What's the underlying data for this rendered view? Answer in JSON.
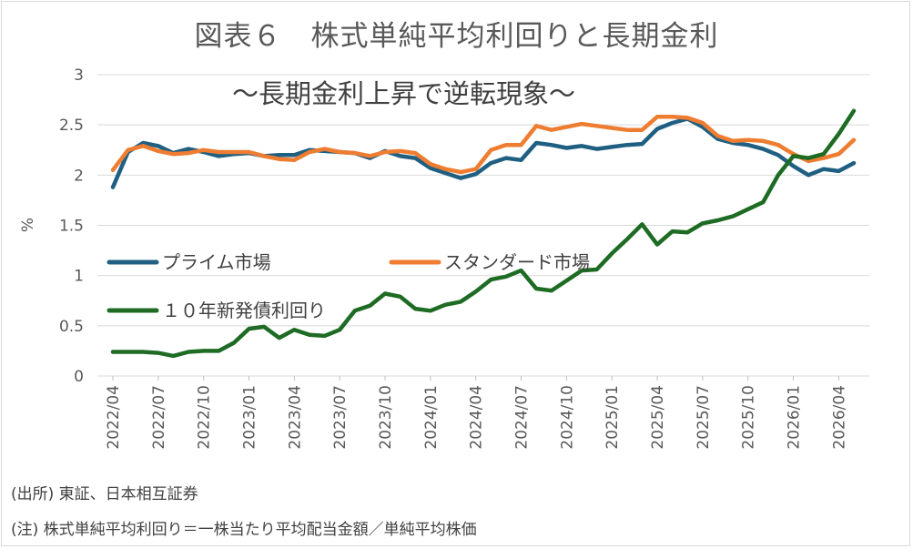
{
  "header": {
    "title": "図表６　株式単純平均利回りと長期金利",
    "subtitle": "～長期金利上昇で逆転現象～"
  },
  "notes": {
    "source": "(出所) 東証、日本相互証券",
    "footnote": "(注) 株式単純平均利回り＝一株当たり平均配当金額／単純平均株価"
  },
  "chart_data": {
    "type": "line",
    "title": "図表６　株式単純平均利回りと長期金利",
    "subtitle": "～長期金利上昇で逆転現象～",
    "ylabel": "%",
    "ylim": [
      0,
      3
    ],
    "yticks": [
      "0",
      "0.5",
      "1",
      "1.5",
      "2",
      "2.5",
      "3"
    ],
    "grid": true,
    "x_tick_labels": [
      "2022/04",
      "2022/07",
      "2022/10",
      "2023/01",
      "2023/04",
      "2023/07",
      "2023/10",
      "2024/01",
      "2024/04",
      "2024/07",
      "2024/10",
      "2025/01",
      "2025/04",
      "2025/07",
      "2025/10",
      "2026/01",
      "2026/04"
    ],
    "x": [
      "2022/04",
      "2022/05",
      "2022/06",
      "2022/07",
      "2022/08",
      "2022/09",
      "2022/10",
      "2022/11",
      "2022/12",
      "2023/01",
      "2023/02",
      "2023/03",
      "2023/04",
      "2023/05",
      "2023/06",
      "2023/07",
      "2023/08",
      "2023/09",
      "2023/10",
      "2023/11",
      "2023/12",
      "2024/01",
      "2024/02",
      "2024/03",
      "2024/04",
      "2024/05",
      "2024/06",
      "2024/07",
      "2024/08",
      "2024/09",
      "2024/10",
      "2024/11",
      "2024/12",
      "2025/01",
      "2025/02",
      "2025/03",
      "2025/04",
      "2025/05",
      "2025/06",
      "2025/07",
      "2025/08",
      "2025/09",
      "2025/10",
      "2025/11",
      "2025/12",
      "2026/01",
      "2026/02",
      "2026/03",
      "2026/04",
      "2026/05"
    ],
    "series": [
      {
        "name": "プライム市場",
        "color": "#1f5f82",
        "values": [
          1.88,
          2.23,
          2.32,
          2.29,
          2.22,
          2.26,
          2.23,
          2.19,
          2.21,
          2.22,
          2.19,
          2.2,
          2.2,
          2.25,
          2.24,
          2.23,
          2.22,
          2.17,
          2.24,
          2.19,
          2.17,
          2.07,
          2.02,
          1.97,
          2.01,
          2.12,
          2.17,
          2.15,
          2.32,
          2.3,
          2.27,
          2.29,
          2.26,
          2.28,
          2.3,
          2.31,
          2.46,
          2.52,
          2.56,
          2.48,
          2.36,
          2.32,
          2.3,
          2.26,
          2.2,
          2.09,
          2.0,
          2.06,
          2.04,
          2.12
        ]
      },
      {
        "name": "スタンダード市場",
        "color": "#ee7d31",
        "values": [
          2.05,
          2.25,
          2.29,
          2.24,
          2.21,
          2.22,
          2.25,
          2.23,
          2.23,
          2.23,
          2.19,
          2.16,
          2.15,
          2.23,
          2.26,
          2.23,
          2.22,
          2.19,
          2.23,
          2.24,
          2.22,
          2.11,
          2.06,
          2.03,
          2.06,
          2.25,
          2.3,
          2.3,
          2.49,
          2.45,
          2.48,
          2.51,
          2.49,
          2.47,
          2.45,
          2.45,
          2.58,
          2.58,
          2.57,
          2.52,
          2.39,
          2.34,
          2.35,
          2.34,
          2.3,
          2.21,
          2.14,
          2.17,
          2.21,
          2.35
        ]
      },
      {
        "name": "１０年新発債利回り",
        "color": "#1e6b24",
        "values": [
          0.24,
          0.24,
          0.24,
          0.23,
          0.2,
          0.24,
          0.25,
          0.25,
          0.33,
          0.47,
          0.49,
          0.38,
          0.46,
          0.41,
          0.4,
          0.46,
          0.65,
          0.7,
          0.82,
          0.79,
          0.67,
          0.65,
          0.71,
          0.74,
          0.84,
          0.96,
          0.99,
          1.05,
          0.87,
          0.85,
          0.95,
          1.05,
          1.06,
          1.22,
          1.36,
          1.51,
          1.31,
          1.44,
          1.43,
          1.52,
          1.55,
          1.59,
          1.66,
          1.73,
          2.0,
          2.19,
          2.17,
          2.21,
          2.41,
          2.64
        ]
      }
    ]
  }
}
